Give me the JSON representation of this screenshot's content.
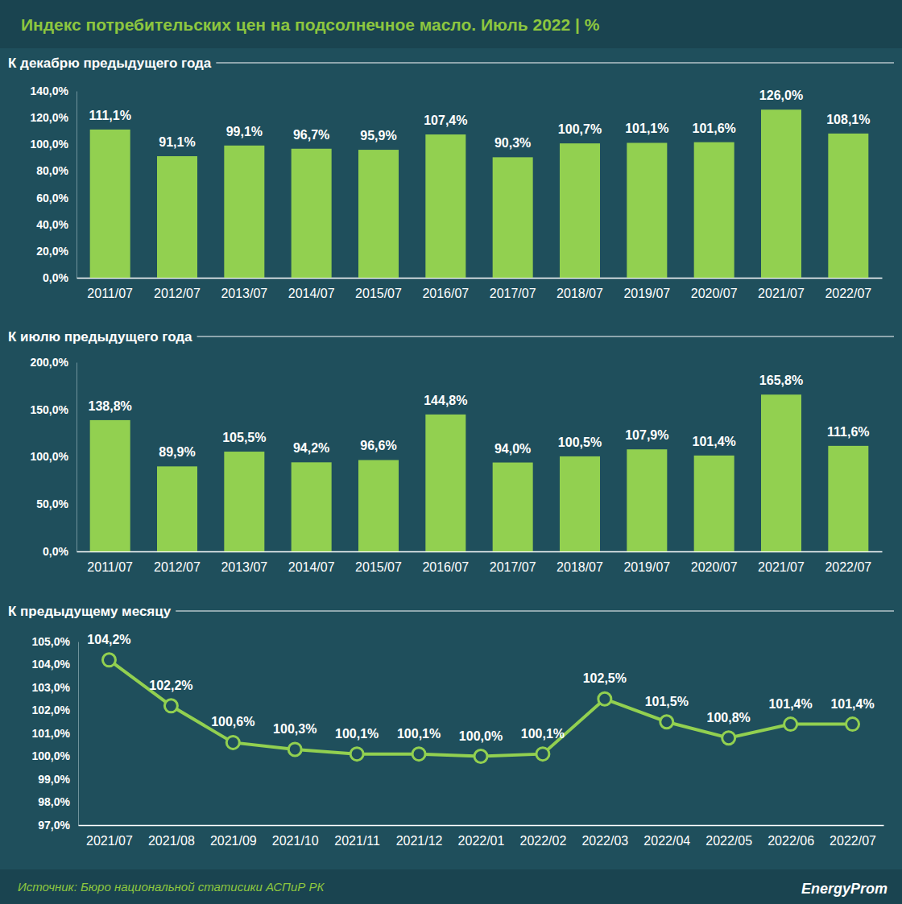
{
  "title": "Индекс потребительских цен на подсолнечное масло. Июль 2022 | %",
  "source": "Источник: Бюро национальной статисики АСПиР РК",
  "logo": "EnergyProm",
  "chart_data": [
    {
      "type": "bar",
      "title": "К декабрю предыдущего года",
      "categories": [
        "2011/07",
        "2012/07",
        "2013/07",
        "2014/07",
        "2015/07",
        "2016/07",
        "2017/07",
        "2018/07",
        "2019/07",
        "2020/07",
        "2021/07",
        "2022/07"
      ],
      "values": [
        111.1,
        91.1,
        99.1,
        96.7,
        95.9,
        107.4,
        90.3,
        100.7,
        101.1,
        101.6,
        126.0,
        108.1
      ],
      "value_labels": [
        "111,1%",
        "91,1%",
        "99,1%",
        "96,7%",
        "95,9%",
        "107,4%",
        "90,3%",
        "100,7%",
        "101,1%",
        "101,6%",
        "126,0%",
        "108,1%"
      ],
      "color": "#92d050",
      "ylim": [
        0,
        140
      ],
      "yticks": [
        {
          "value": 0,
          "label": "0,0%"
        },
        {
          "value": 20,
          "label": "20,0%"
        },
        {
          "value": 40,
          "label": "40,0%"
        },
        {
          "value": 60,
          "label": "60,0%"
        },
        {
          "value": 80,
          "label": "80,0%"
        },
        {
          "value": 100,
          "label": "100,0%"
        },
        {
          "value": 120,
          "label": "120,0%"
        },
        {
          "value": 140,
          "label": "140,0%"
        }
      ],
      "grid": false,
      "data_labels": true
    },
    {
      "type": "bar",
      "title": "К июлю предыдущего года",
      "categories": [
        "2011/07",
        "2012/07",
        "2013/07",
        "2014/07",
        "2015/07",
        "2016/07",
        "2017/07",
        "2018/07",
        "2019/07",
        "2020/07",
        "2021/07",
        "2022/07"
      ],
      "values": [
        138.8,
        89.9,
        105.5,
        94.2,
        96.6,
        144.8,
        94.0,
        100.5,
        107.9,
        101.4,
        165.8,
        111.6
      ],
      "value_labels": [
        "138,8%",
        "89,9%",
        "105,5%",
        "94,2%",
        "96,6%",
        "144,8%",
        "94,0%",
        "100,5%",
        "107,9%",
        "101,4%",
        "165,8%",
        "111,6%"
      ],
      "color": "#92d050",
      "ylim": [
        0,
        200
      ],
      "yticks": [
        {
          "value": 0,
          "label": "0,0%"
        },
        {
          "value": 50,
          "label": "50,0%"
        },
        {
          "value": 100,
          "label": "100,0%"
        },
        {
          "value": 150,
          "label": "150,0%"
        },
        {
          "value": 200,
          "label": "200,0%"
        }
      ],
      "grid": false,
      "data_labels": true
    },
    {
      "type": "line",
      "title": "К предыдущему месяцу",
      "categories": [
        "2021/07",
        "2021/08",
        "2021/09",
        "2021/10",
        "2021/11",
        "2021/12",
        "2022/01",
        "2022/02",
        "2022/03",
        "2022/04",
        "2022/05",
        "2022/06",
        "2022/07"
      ],
      "values": [
        104.2,
        102.2,
        100.6,
        100.3,
        100.1,
        100.1,
        100.0,
        100.1,
        102.5,
        101.5,
        100.8,
        101.4,
        101.4
      ],
      "value_labels": [
        "104,2%",
        "102,2%",
        "100,6%",
        "100,3%",
        "100,1%",
        "100,1%",
        "100,0%",
        "100,1%",
        "102,5%",
        "101,5%",
        "100,8%",
        "101,4%",
        "101,4%"
      ],
      "color": "#92d050",
      "marker": "circle",
      "ylim": [
        97,
        105
      ],
      "yticks": [
        {
          "value": 97,
          "label": "97,0%"
        },
        {
          "value": 98,
          "label": "98,0%"
        },
        {
          "value": 99,
          "label": "99,0%"
        },
        {
          "value": 100,
          "label": "100,0%"
        },
        {
          "value": 101,
          "label": "101,0%"
        },
        {
          "value": 102,
          "label": "102,0%"
        },
        {
          "value": 103,
          "label": "103,0%"
        },
        {
          "value": 104,
          "label": "104,0%"
        },
        {
          "value": 105,
          "label": "105,0%"
        }
      ],
      "grid": false,
      "data_labels": true
    }
  ]
}
